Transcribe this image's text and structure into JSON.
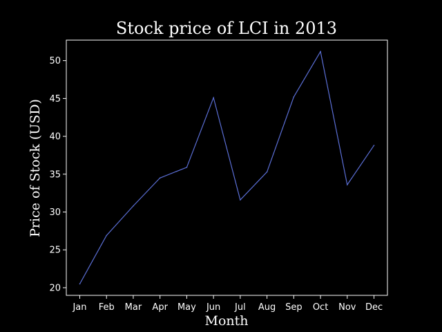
{
  "chart_data": {
    "type": "line",
    "title": "Stock price of LCI in 2013",
    "xlabel": "Month",
    "ylabel": "Price of Stock (USD)",
    "categories": [
      "Jan",
      "Feb",
      "Mar",
      "Apr",
      "May",
      "Jun",
      "Jul",
      "Aug",
      "Sep",
      "Oct",
      "Nov",
      "Dec"
    ],
    "series": [
      {
        "values": [
          20.5,
          26.9,
          30.8,
          34.5,
          35.9,
          45.1,
          31.6,
          35.3,
          45.2,
          51.2,
          33.6,
          38.8
        ]
      }
    ],
    "ylim": [
      18.99,
      52.71
    ],
    "yticks": [
      20,
      25,
      30,
      35,
      40,
      45,
      50
    ],
    "grid": false,
    "colors": {
      "background": "#000000",
      "line": "#5b6fd6",
      "axes": "#ffffff",
      "text": "#ffffff"
    }
  }
}
